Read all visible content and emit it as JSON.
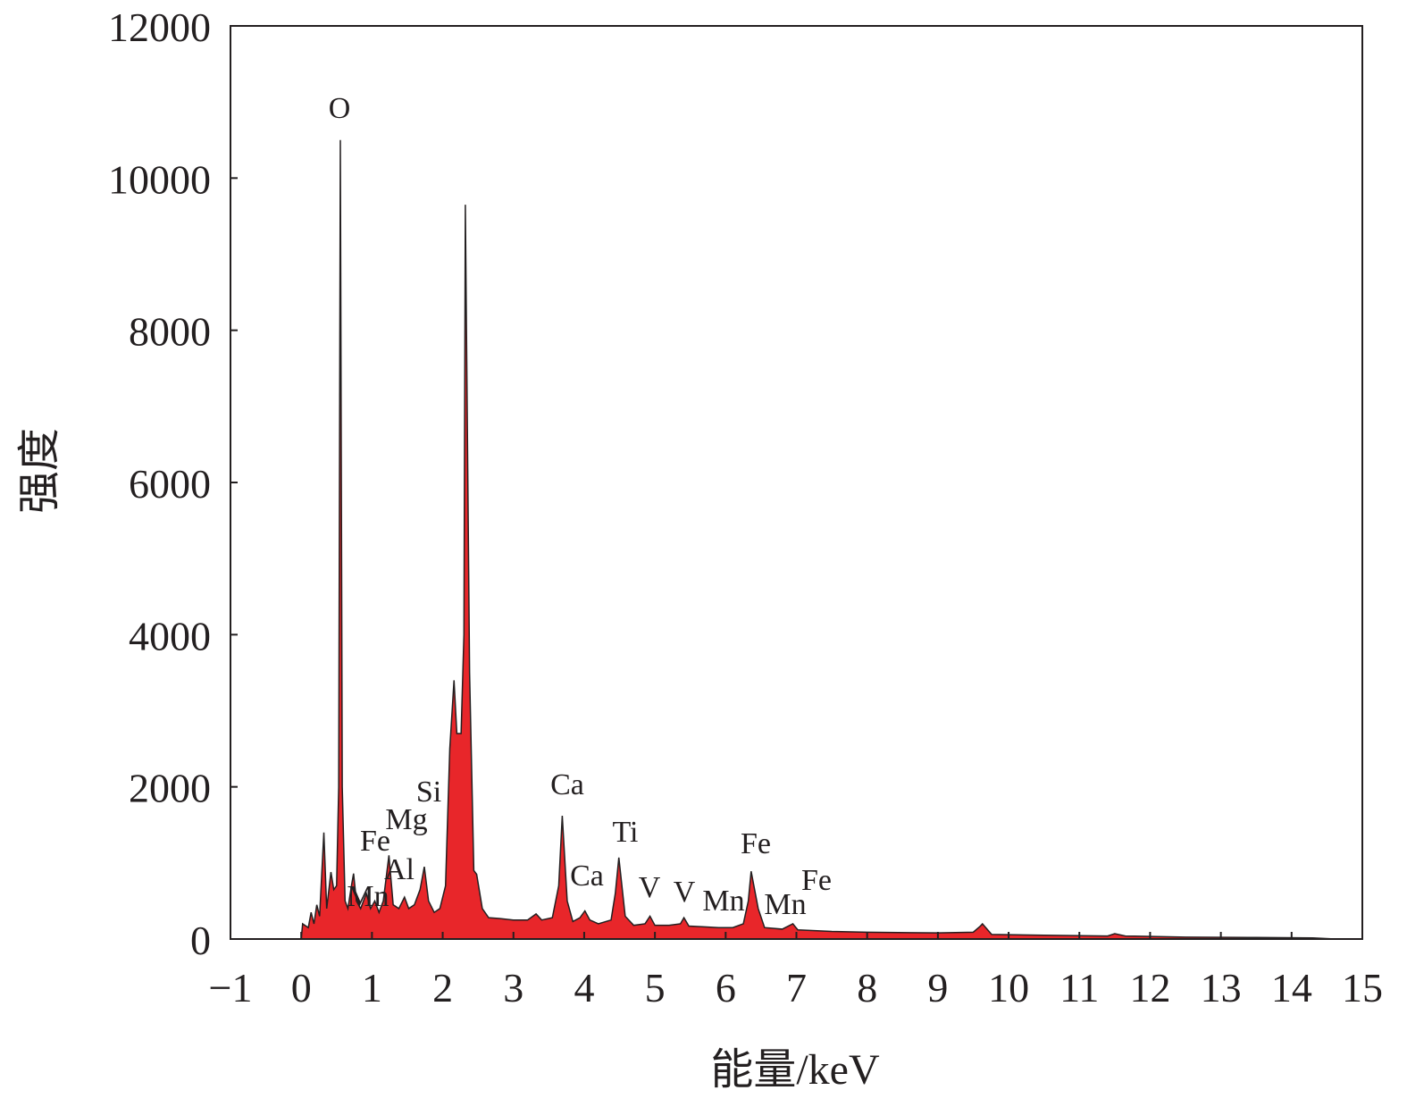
{
  "chart_data": {
    "type": "area",
    "x_label": "能量/keV",
    "y_label": "强度",
    "color": "#e8262a",
    "line_color": "#231f20",
    "x": [
      0.0,
      0.02,
      0.1,
      0.14,
      0.18,
      0.22,
      0.26,
      0.32,
      0.36,
      0.42,
      0.46,
      0.5,
      0.53,
      0.553,
      0.58,
      0.62,
      0.66,
      0.71,
      0.74,
      0.78,
      0.84,
      0.92,
      0.98,
      1.04,
      1.1,
      1.16,
      1.24,
      1.3,
      1.38,
      1.46,
      1.52,
      1.6,
      1.68,
      1.74,
      1.8,
      1.88,
      1.96,
      2.04,
      2.1,
      2.16,
      2.2,
      2.26,
      2.3,
      2.32,
      2.38,
      2.44,
      2.48,
      2.56,
      2.65,
      2.8,
      3.0,
      3.2,
      3.32,
      3.4,
      3.55,
      3.64,
      3.69,
      3.76,
      3.84,
      3.94,
      4.01,
      4.08,
      4.2,
      4.38,
      4.44,
      4.49,
      4.58,
      4.7,
      4.86,
      4.93,
      5.0,
      5.2,
      5.36,
      5.41,
      5.48,
      5.7,
      5.9,
      6.1,
      6.25,
      6.32,
      6.36,
      6.46,
      6.55,
      6.8,
      6.95,
      7.02,
      7.5,
      8.0,
      9.0,
      9.5,
      9.6,
      9.63,
      9.76,
      10.5,
      11.4,
      11.5,
      11.65,
      12.5,
      13.5,
      14.3,
      14.62
    ],
    "values": [
      0,
      200,
      150,
      350,
      200,
      450,
      300,
      1400,
      400,
      880,
      650,
      700,
      2000,
      10500,
      2000,
      500,
      400,
      700,
      860,
      500,
      400,
      600,
      400,
      500,
      350,
      500,
      1100,
      450,
      400,
      550,
      400,
      450,
      650,
      950,
      500,
      350,
      400,
      700,
      2500,
      3400,
      2700,
      2700,
      4000,
      9650,
      3500,
      900,
      850,
      400,
      280,
      270,
      250,
      250,
      330,
      250,
      280,
      700,
      1620,
      500,
      230,
      280,
      370,
      250,
      200,
      250,
      600,
      1070,
      300,
      180,
      200,
      300,
      180,
      180,
      200,
      280,
      170,
      160,
      150,
      150,
      200,
      500,
      890,
      400,
      150,
      130,
      200,
      120,
      100,
      90,
      80,
      90,
      170,
      200,
      60,
      50,
      40,
      70,
      40,
      25,
      20,
      15,
      0
    ],
    "annotations": [
      "O",
      "Fe",
      "Mg",
      "Si",
      "Al",
      "Mn",
      "Ca",
      "Ca",
      "Ti",
      "V",
      "V",
      "Mn",
      "Mn",
      "Fe",
      "Fe"
    ],
    "xlim": [
      -1,
      15
    ],
    "ylim": [
      0,
      12000
    ],
    "xticks": [
      {
        "value": -1,
        "label": "−1"
      },
      0,
      1,
      2,
      3,
      4,
      5,
      6,
      7,
      8,
      9,
      10,
      11,
      12,
      13,
      14,
      15
    ],
    "yticks": [
      0,
      2000,
      4000,
      6000,
      8000,
      10000,
      12000
    ]
  }
}
